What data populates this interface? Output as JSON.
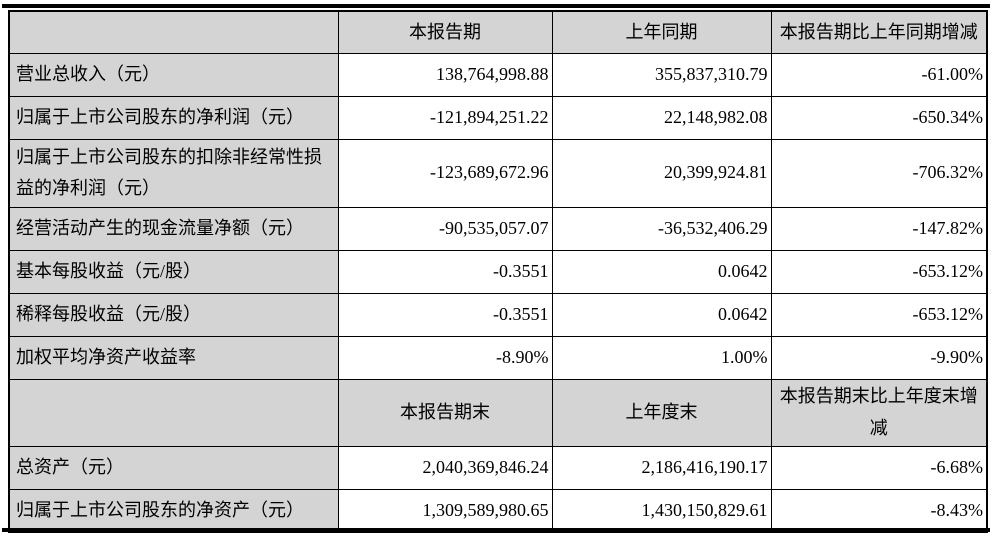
{
  "table": {
    "colors": {
      "shaded_cell_bg": "#d4d4d4",
      "value_cell_bg": "#ffffff",
      "border": "#000000",
      "text": "#000000"
    },
    "header1": {
      "corner": "",
      "period": "本报告期",
      "prior": "上年同期",
      "change": "本报告期比上年同期增减"
    },
    "header2": {
      "corner": "",
      "period": "本报告期末",
      "prior": "上年度末",
      "change": "本报告期末比上年度末增减"
    },
    "rows": [
      {
        "label": "营业总收入（元）",
        "current": "138,764,998.88",
        "prior": "355,837,310.79",
        "change": "-61.00%"
      },
      {
        "label": "归属于上市公司股东的净利润（元）",
        "current": "-121,894,251.22",
        "prior": "22,148,982.08",
        "change": "-650.34%"
      },
      {
        "label": "归属于上市公司股东的扣除非经常性损益的净利润（元）",
        "current": "-123,689,672.96",
        "prior": "20,399,924.81",
        "change": "-706.32%"
      },
      {
        "label": "经营活动产生的现金流量净额（元）",
        "current": "-90,535,057.07",
        "prior": "-36,532,406.29",
        "change": "-147.82%"
      },
      {
        "label": "基本每股收益（元/股）",
        "current": "-0.3551",
        "prior": "0.0642",
        "change": "-653.12%"
      },
      {
        "label": "稀释每股收益（元/股）",
        "current": "-0.3551",
        "prior": "0.0642",
        "change": "-653.12%"
      },
      {
        "label": "加权平均净资产收益率",
        "current": "-8.90%",
        "prior": "1.00%",
        "change": "-9.90%"
      },
      {
        "label": "总资产（元）",
        "current": "2,040,369,846.24",
        "prior": "2,186,416,190.17",
        "change": "-6.68%"
      },
      {
        "label": "归属于上市公司股东的净资产（元）",
        "current": "1,309,589,980.65",
        "prior": "1,430,150,829.61",
        "change": "-8.43%"
      }
    ]
  }
}
